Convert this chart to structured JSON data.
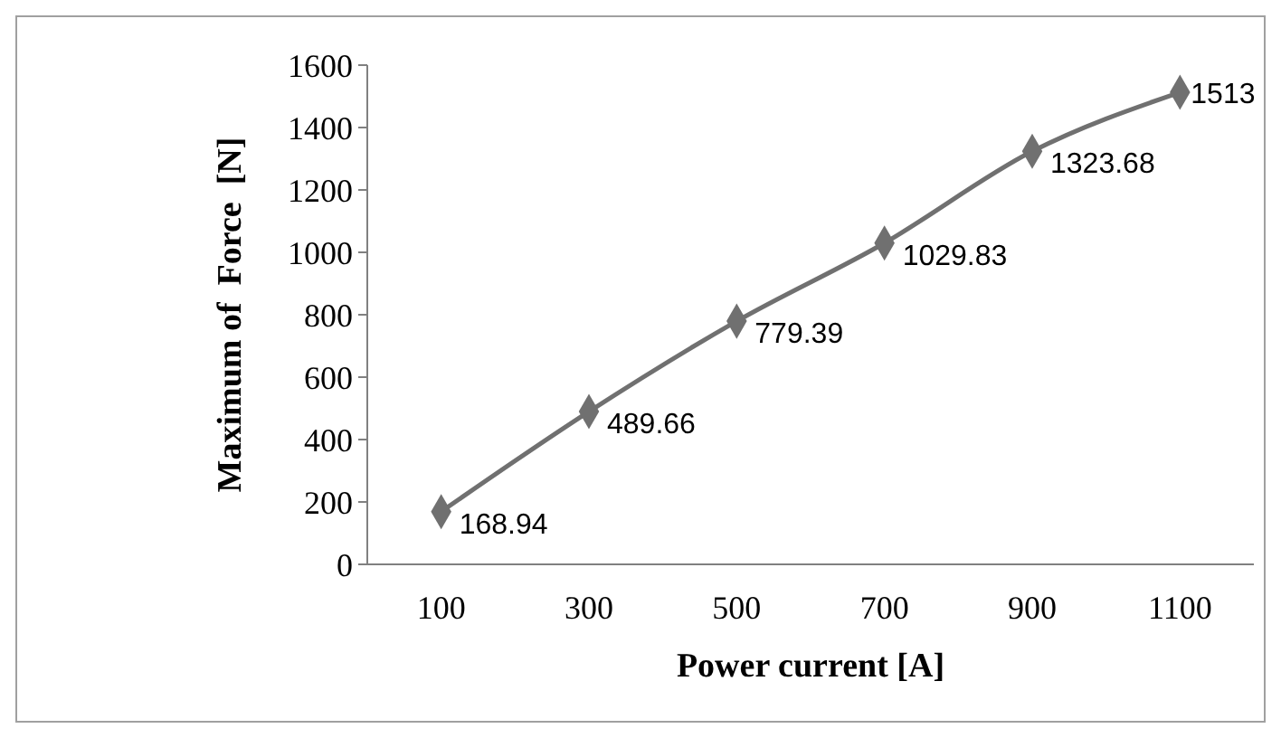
{
  "chart_data": {
    "type": "line",
    "xlabel": "Power current [A]",
    "ylabel": "Maximum of  Force  [N]",
    "categories": [
      "100",
      "300",
      "500",
      "700",
      "900",
      "1100"
    ],
    "series": [
      {
        "color": "#707070",
        "values": [
          168.94,
          489.66,
          779.39,
          1029.83,
          1323.68,
          1513
        ]
      }
    ],
    "ylim": [
      0,
      1600
    ],
    "yticks": [
      0,
      200,
      400,
      600,
      800,
      1000,
      1200,
      1400,
      1600
    ],
    "marker": "diamond",
    "line_style": "solid",
    "data_labels": true,
    "grid": false
  }
}
